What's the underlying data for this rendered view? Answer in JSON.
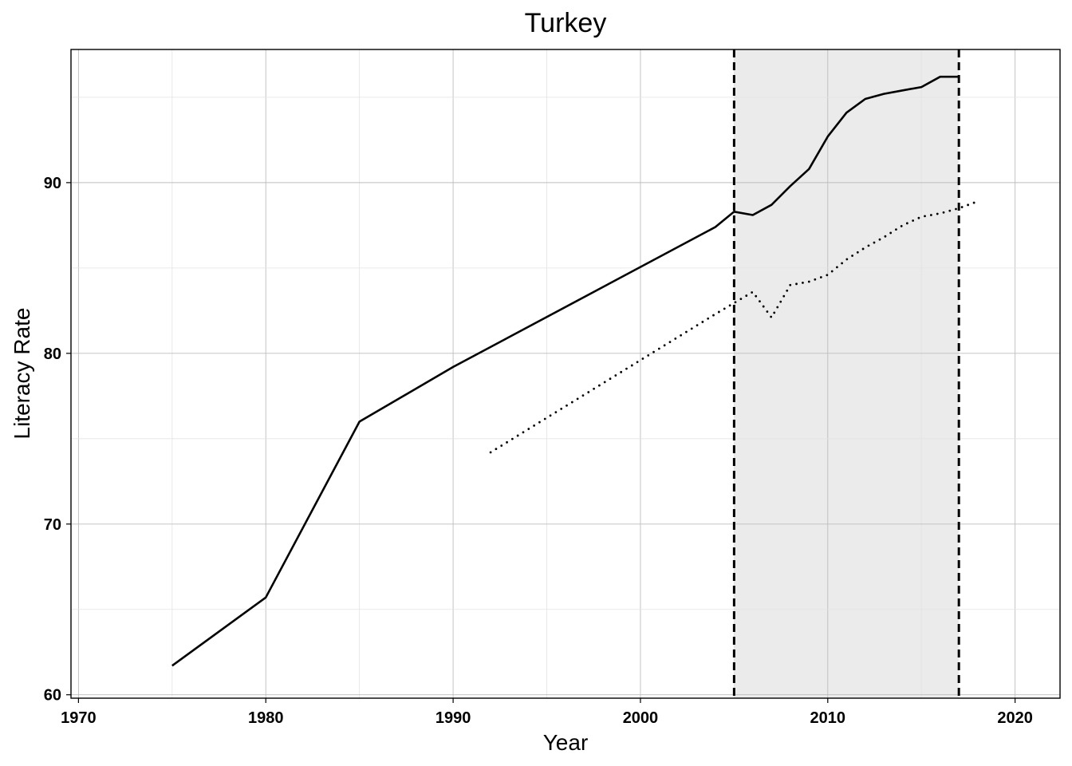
{
  "chart_data": {
    "type": "line",
    "title": "Turkey",
    "xlabel": "Year",
    "ylabel": "Literacy Rate",
    "xlim": [
      1969.6,
      2022.4
    ],
    "ylim": [
      59.8,
      97.8
    ],
    "x_ticks": [
      1970,
      1980,
      1990,
      2000,
      2010,
      2020
    ],
    "y_ticks": [
      60,
      70,
      80,
      90
    ],
    "grid": true,
    "shaded_region": {
      "x_start": 2005,
      "x_end": 2017,
      "fill": "#ebebeb"
    },
    "vlines": [
      2005,
      2017
    ],
    "series": [
      {
        "style": "solid",
        "color": "#000000",
        "x": [
          1975,
          1980,
          1985,
          1990,
          2004,
          2005,
          2006,
          2007,
          2008,
          2009,
          2010,
          2011,
          2012,
          2013,
          2014,
          2015,
          2016,
          2017
        ],
        "y": [
          61.7,
          65.7,
          76.0,
          79.2,
          87.4,
          88.3,
          88.1,
          88.7,
          89.8,
          90.8,
          92.7,
          94.1,
          94.9,
          95.2,
          95.4,
          95.6,
          96.2,
          96.2
        ]
      },
      {
        "style": "dotted",
        "color": "#000000",
        "x": [
          1992,
          2004,
          2006,
          2007,
          2008,
          2009,
          2010,
          2011,
          2012,
          2013,
          2014,
          2015,
          2016,
          2017,
          2018
        ],
        "y": [
          74.2,
          82.3,
          83.6,
          82.1,
          84.0,
          84.2,
          84.6,
          85.5,
          86.2,
          86.8,
          87.5,
          88.0,
          88.2,
          88.5,
          88.9
        ]
      }
    ]
  }
}
